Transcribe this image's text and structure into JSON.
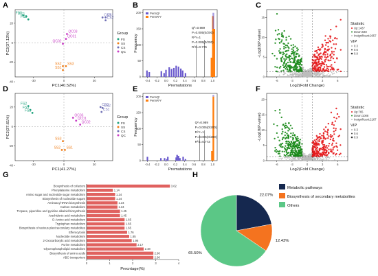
{
  "colors": {
    "FS": "#1fa27e",
    "SS": "#f07f1a",
    "CS": "#6f6fb5",
    "QC": "#c93ec6",
    "permR": "#6a5acd",
    "permQ": "#ff7f0e",
    "up": "#e41a1c",
    "down": "#1a8a1a",
    "ns": "#bdbdbd",
    "bar": "#e0615f",
    "pie1": "#15284f",
    "pie2": "#f4731f",
    "pie3": "#5bc786"
  },
  "panels": {
    "A": "A",
    "B": "B",
    "C": "C",
    "D": "D",
    "E": "E",
    "F": "F",
    "G": "G",
    "H": "H"
  },
  "chart_data": [
    {
      "type": "scatter",
      "panel": "A",
      "xlabel": "PC1(40.52%)",
      "ylabel": "PC2(37.12%)",
      "xticks": [
        "-30",
        "0",
        "30"
      ],
      "yticks": [
        "-40",
        "-20",
        "0",
        "20"
      ],
      "legend_title": "Group",
      "legend": [
        "FS",
        "SS",
        "CS",
        "QC"
      ],
      "points": [
        {
          "g": "FS",
          "x": -40,
          "y": 28,
          "label": "FS2"
        },
        {
          "g": "FS",
          "x": -37,
          "y": 27,
          "label": "FS1"
        },
        {
          "g": "FS",
          "x": -35,
          "y": 24,
          "label": "FS3"
        },
        {
          "g": "CS",
          "x": 38,
          "y": 26,
          "label": "CS3"
        },
        {
          "g": "CS",
          "x": 41,
          "y": 26,
          "label": "CS1"
        },
        {
          "g": "CS",
          "x": 41,
          "y": 23,
          "label": "CS2"
        },
        {
          "g": "QC",
          "x": 3,
          "y": 9,
          "label": "QC03"
        },
        {
          "g": "QC",
          "x": 2,
          "y": 4,
          "label": "QC01"
        },
        {
          "g": "QC",
          "x": -1,
          "y": -1,
          "label": "QC02"
        },
        {
          "g": "SS",
          "x": -1,
          "y": -24,
          "label": "SS2"
        },
        {
          "g": "SS",
          "x": 2,
          "y": -24,
          "label": "SS3"
        },
        {
          "g": "SS",
          "x": -1,
          "y": -28,
          "label": "SS1"
        }
      ]
    },
    {
      "type": "bar",
      "panel": "B",
      "xlabel": "Premutations",
      "ylabel": "Frequency",
      "legend": [
        "PermQ²",
        "PermR²Y"
      ],
      "xticks": [
        "-0.4",
        "-0.2",
        "0.0",
        "0.2",
        "0.4",
        "0.6",
        "0.8",
        "1.0"
      ],
      "yticks": [
        "0",
        "50",
        "100",
        "150",
        "200"
      ],
      "annotations": [
        "Q²=0.989",
        "P=0.005(0/200)",
        "R²Y=1",
        "P=0.005(0/200)",
        "R²X=0.775"
      ]
    },
    {
      "type": "scatter",
      "panel": "C",
      "xlabel": "Log2(Fold Change)",
      "ylabel": "-Log10(P-value)",
      "xticks": [
        "-6",
        "-3",
        "0",
        "3",
        "6"
      ],
      "yticks": [
        "0",
        "5",
        "10",
        "15"
      ],
      "statistic_title": "Statistic",
      "statistic": [
        "Up:1437",
        "Down:640",
        "Insignificant:2057"
      ],
      "vip_title": "VIP",
      "vip": [
        "0.3",
        "0.6",
        "0.9"
      ]
    },
    {
      "type": "scatter",
      "panel": "D",
      "xlabel": "PC1(41.27%)",
      "ylabel": "PC2(37.61%)",
      "xticks": [
        "-30",
        "0",
        "30"
      ],
      "yticks": [
        "-40",
        "-20",
        "0",
        "20"
      ],
      "legend_title": "Group",
      "legend": [
        "FS",
        "SS",
        "CS",
        "QC"
      ],
      "points": [
        {
          "g": "FS",
          "x": -35,
          "y": 21,
          "label": "FS2"
        },
        {
          "g": "FS",
          "x": -33,
          "y": 17,
          "label": "FS3"
        },
        {
          "g": "FS",
          "x": -31,
          "y": 14,
          "label": "FS1"
        },
        {
          "g": "CS",
          "x": 36,
          "y": 20,
          "label": "CS3"
        },
        {
          "g": "CS",
          "x": 38,
          "y": 19,
          "label": "CS2"
        },
        {
          "g": "CS",
          "x": 37,
          "y": 15,
          "label": "CS1"
        },
        {
          "g": "QC",
          "x": 9,
          "y": 9,
          "label": "QC03"
        },
        {
          "g": "QC",
          "x": 12,
          "y": 6,
          "label": "QC01"
        },
        {
          "g": "QC",
          "x": 16,
          "y": 2,
          "label": "QC02"
        },
        {
          "g": "SS",
          "x": -1,
          "y": -15,
          "label": "SS3"
        },
        {
          "g": "SS",
          "x": -2,
          "y": -24,
          "label": "SS2"
        },
        {
          "g": "SS",
          "x": 1,
          "y": -24,
          "label": "SS1"
        }
      ]
    },
    {
      "type": "bar",
      "panel": "E",
      "xlabel": "Premutations",
      "ylabel": "Frequency",
      "legend": [
        "PermQ²",
        "PermR²Y"
      ],
      "xticks": [
        "-0.4",
        "-0.2",
        "0.0",
        "0.2",
        "0.4",
        "0.6",
        "0.8",
        "1.0"
      ],
      "yticks": [
        "0",
        "50",
        "100",
        "150",
        "200"
      ],
      "annotations": [
        "Q²=0.989",
        "P=0.005(0/200)",
        "R²Y=1",
        "P=0.005(0/200)",
        "R²X=0.773"
      ]
    },
    {
      "type": "scatter",
      "panel": "F",
      "xlabel": "Log2(Fold Change)",
      "ylabel": "-Log10(P-value)",
      "xticks": [
        "-6",
        "-3",
        "0",
        "3",
        "6"
      ],
      "yticks": [
        "0",
        "5",
        "10",
        "15",
        "20"
      ],
      "statistic_title": "Statistic",
      "statistic": [
        "Up:765",
        "Down:1008",
        "Insignificant:2167"
      ],
      "vip_title": "VIP",
      "vip": [
        "0.3",
        "0.6",
        "0.9"
      ]
    },
    {
      "type": "bar",
      "panel": "G",
      "orientation": "horizontal",
      "xlabel": "Precntage(%)",
      "xticks": [
        "0",
        "1",
        "2",
        "3",
        "4"
      ],
      "categories": [
        "Biosynthesis of cofactors",
        "Phenylalanine metabolism",
        "Amino sugar and nucleotide sugar metabolism",
        "Biosynthesis of nucleotide sugars",
        "Aminoacyl-tRNA biosynthesis",
        "Carbon metabolism",
        "Tropane, piperidine and pyridine alkaloid biosynthesis",
        "Arachidonic acid metabolism",
        "D-Amino acid metabolism",
        "Tryptophan metabolism",
        "Biosynthesis of various plant secondary metabolites",
        "Efferocytosis",
        "Nucleotide metabolism",
        "2-Oxocarboxylic acid metabolism",
        "Purine metabolism",
        "Glycerophospholipid metabolism",
        "Biosynthesis of amino acids",
        "ABC transporters"
      ],
      "values": [
        3.62,
        1.14,
        1.24,
        1.24,
        1.34,
        1.34,
        1.45,
        1.45,
        1.65,
        1.65,
        1.65,
        1.76,
        1.85,
        1.96,
        2.17,
        2.48,
        2.9,
        2.9
      ],
      "labels": [
        "3.62",
        "1.14",
        "1.24",
        "1.24",
        "1.34",
        "1.34",
        "1.45",
        "1.45",
        "1.65",
        "1.65",
        "1.65",
        "1.76",
        "1.85",
        "1.96",
        "2.17",
        "2.48",
        "2.90",
        "2.90"
      ]
    },
    {
      "type": "pie",
      "panel": "H",
      "legend": [
        "Metabolic pathways",
        "Biosynthesis of secondary metabolites",
        "Others"
      ],
      "values": [
        22.07,
        12.43,
        65.5
      ],
      "labels": [
        "22.07%",
        "12.43%",
        "65.50%"
      ]
    }
  ]
}
